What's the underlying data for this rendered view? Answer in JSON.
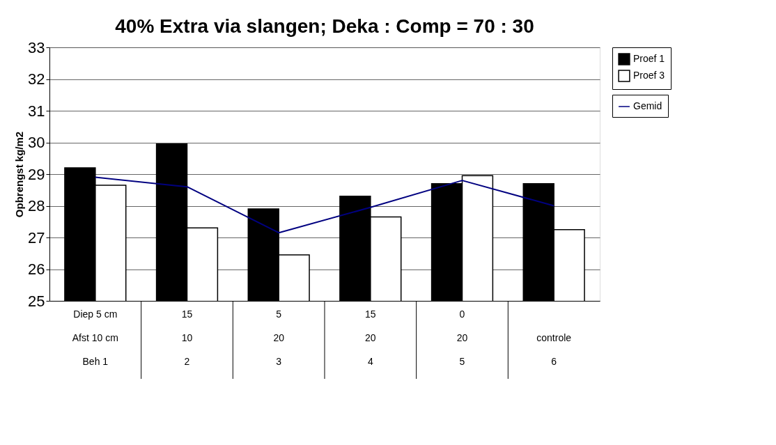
{
  "chart_data": {
    "type": "bar",
    "title": "40% Extra via slangen; Deka : Comp = 70 : 30",
    "ylabel": "Opbrengst kg/m2",
    "categories": [
      "Diep 5 cm\nAfst 10 cm\nBeh 1",
      "15\n10\n2",
      "5\n20\n3",
      "15\n20\n4",
      "0\n20\n5",
      "\ncontrole\n6"
    ],
    "series": [
      {
        "name": "Proef 1",
        "color": "#000000",
        "values": [
          29.2,
          29.95,
          27.9,
          28.3,
          28.7,
          28.7
        ]
      },
      {
        "name": "Proef 3",
        "color": "#ffffff",
        "values": [
          28.65,
          27.3,
          26.45,
          27.65,
          28.95,
          27.25
        ]
      },
      {
        "name": "Gemid",
        "type": "line",
        "color": "#000080",
        "values": [
          28.9,
          28.6,
          27.15,
          27.95,
          28.8,
          28.0
        ]
      }
    ],
    "ylim": [
      25,
      33
    ],
    "yticks": [
      25,
      26,
      27,
      28,
      29,
      30,
      31,
      32,
      33
    ],
    "grid": "y",
    "legend": "right"
  }
}
